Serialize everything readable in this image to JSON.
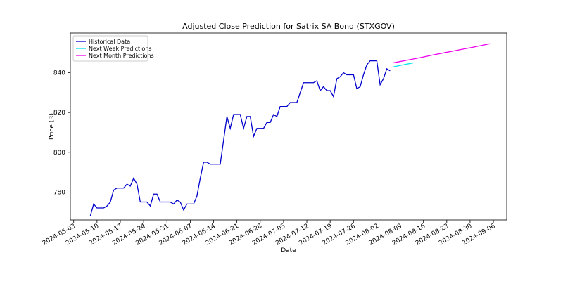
{
  "chart_data": {
    "type": "line",
    "title": "Adjusted Close Prediction for Satrix SA Bond (STXGOV)",
    "x_label": "Date",
    "y_label": "Price (R)",
    "xlim": [
      "2024-05-02",
      "2024-09-10"
    ],
    "ylim": [
      766,
      860
    ],
    "xticks": [
      "2024-05-03",
      "2024-05-10",
      "2024-05-17",
      "2024-05-24",
      "2024-05-31",
      "2024-06-07",
      "2024-06-14",
      "2024-06-21",
      "2024-06-28",
      "2024-07-05",
      "2024-07-12",
      "2024-07-19",
      "2024-07-26",
      "2024-08-02",
      "2024-08-09",
      "2024-08-16",
      "2024-08-23",
      "2024-08-30",
      "2024-09-06"
    ],
    "yticks": [
      780,
      800,
      820,
      840
    ],
    "legend": "upper left",
    "series": [
      {
        "name": "Historical Data",
        "color": "#0000cc",
        "x": [
          "2024-05-08",
          "2024-05-09",
          "2024-05-10",
          "2024-05-11",
          "2024-05-12",
          "2024-05-13",
          "2024-05-14",
          "2024-05-15",
          "2024-05-16",
          "2024-05-17",
          "2024-05-18",
          "2024-05-19",
          "2024-05-20",
          "2024-05-21",
          "2024-05-22",
          "2024-05-23",
          "2024-05-24",
          "2024-05-25",
          "2024-05-26",
          "2024-05-27",
          "2024-05-28",
          "2024-05-29",
          "2024-05-30",
          "2024-05-31",
          "2024-06-01",
          "2024-06-02",
          "2024-06-03",
          "2024-06-04",
          "2024-06-05",
          "2024-06-06",
          "2024-06-07",
          "2024-06-08",
          "2024-06-09",
          "2024-06-10",
          "2024-06-11",
          "2024-06-12",
          "2024-06-13",
          "2024-06-14",
          "2024-06-15",
          "2024-06-16",
          "2024-06-17",
          "2024-06-18",
          "2024-06-19",
          "2024-06-20",
          "2024-06-21",
          "2024-06-22",
          "2024-06-23",
          "2024-06-24",
          "2024-06-25",
          "2024-06-26",
          "2024-06-27",
          "2024-06-28",
          "2024-06-29",
          "2024-06-30",
          "2024-07-01",
          "2024-07-02",
          "2024-07-03",
          "2024-07-04",
          "2024-07-05",
          "2024-07-06",
          "2024-07-07",
          "2024-07-08",
          "2024-07-09",
          "2024-07-10",
          "2024-07-11",
          "2024-07-12",
          "2024-07-13",
          "2024-07-14",
          "2024-07-15",
          "2024-07-16",
          "2024-07-17",
          "2024-07-18",
          "2024-07-19",
          "2024-07-20",
          "2024-07-21",
          "2024-07-22",
          "2024-07-23",
          "2024-07-24",
          "2024-07-25",
          "2024-07-26",
          "2024-07-27",
          "2024-07-28",
          "2024-07-29",
          "2024-07-30",
          "2024-07-31",
          "2024-08-01",
          "2024-08-02",
          "2024-08-03",
          "2024-08-04",
          "2024-08-05",
          "2024-08-06"
        ],
        "values": [
          768,
          774,
          772,
          772,
          772,
          773,
          775,
          781,
          782,
          782,
          782,
          784,
          783,
          787,
          784,
          775,
          775,
          775,
          773,
          779,
          779,
          775,
          775,
          775,
          775,
          774,
          776,
          775,
          771,
          774,
          774,
          774,
          778,
          787,
          795,
          795,
          794,
          794,
          794,
          794,
          806,
          818,
          812,
          819,
          819,
          819,
          812,
          818,
          818,
          808,
          812,
          812,
          812,
          815,
          815,
          819,
          818,
          823,
          823,
          823,
          825,
          825,
          825,
          830,
          835,
          835,
          835,
          835,
          836,
          831,
          833,
          831,
          831,
          828,
          837,
          838,
          840,
          839,
          839,
          839,
          832,
          833,
          839,
          844,
          846,
          846,
          846,
          834,
          837,
          842,
          841
        ]
      },
      {
        "name": "Next Week Predictions",
        "color": "#00e5ee",
        "x": [
          "2024-08-07",
          "2024-08-10",
          "2024-08-13"
        ],
        "values": [
          843,
          844,
          845
        ]
      },
      {
        "name": "Next Month Predictions",
        "color": "#ee00ee",
        "x": [
          "2024-08-07",
          "2024-08-11",
          "2024-08-15",
          "2024-08-19",
          "2024-08-23",
          "2024-08-27",
          "2024-08-31",
          "2024-09-05"
        ],
        "values": [
          845,
          846.3,
          847.6,
          849,
          850.3,
          851.6,
          852.9,
          854.6
        ]
      }
    ]
  }
}
